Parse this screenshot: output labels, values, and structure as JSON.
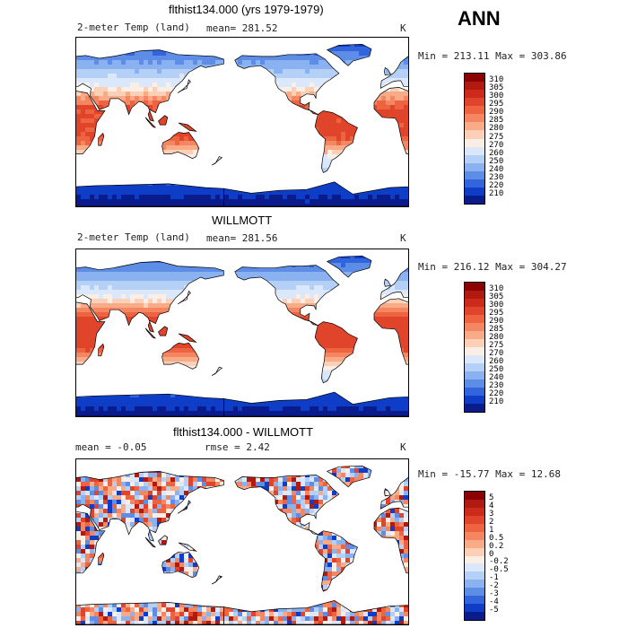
{
  "header": {
    "season": "ANN"
  },
  "panels": [
    {
      "title": "flthist134.000 (yrs 1979-1979)",
      "left_label": "2-meter Temp (land)",
      "mid_label": "mean= 281.52",
      "right_label": "K",
      "min_max": "Min = 213.11 Max = 303.86",
      "levels": [
        "310",
        "305",
        "300",
        "295",
        "290",
        "285",
        "280",
        "275",
        "270",
        "260",
        "250",
        "240",
        "230",
        "220",
        "210"
      ],
      "colors": [
        "#8b0000",
        "#b01a0f",
        "#cc2a1a",
        "#e0452c",
        "#ee6440",
        "#f48762",
        "#f9ab88",
        "#fcd0b6",
        "#fbeee4",
        "#dbe8fb",
        "#b5d0f7",
        "#8ab1f0",
        "#5d8de6",
        "#3265dc",
        "#0e3ec7",
        "#0a1b8c"
      ],
      "theme": "temp1"
    },
    {
      "title": "WILLMOTT",
      "left_label": "2-meter Temp (land)",
      "mid_label": "mean= 281.56",
      "right_label": "K",
      "min_max": "Min = 216.12 Max = 304.27",
      "levels": [
        "310",
        "305",
        "300",
        "295",
        "290",
        "285",
        "280",
        "275",
        "270",
        "260",
        "250",
        "240",
        "230",
        "220",
        "210"
      ],
      "colors": [
        "#8b0000",
        "#b01a0f",
        "#cc2a1a",
        "#e0452c",
        "#ee6440",
        "#f48762",
        "#f9ab88",
        "#fcd0b6",
        "#fbeee4",
        "#dbe8fb",
        "#b5d0f7",
        "#8ab1f0",
        "#5d8de6",
        "#3265dc",
        "#0e3ec7",
        "#0a1b8c"
      ],
      "theme": "temp2"
    },
    {
      "title": "flthist134.000 - WILLMOTT",
      "left_label": "mean =   -0.05",
      "mid_label": "rmse =    2.42",
      "right_label": "K",
      "min_max": "Min = -15.77 Max =   12.68",
      "levels": [
        "5",
        "4",
        "3",
        "2",
        "1",
        "0.5",
        "0.2",
        "0",
        "-0.2",
        "-0.5",
        "-1",
        "-2",
        "-3",
        "-4",
        "-5"
      ],
      "colors": [
        "#8b0000",
        "#b01a0f",
        "#cc2a1a",
        "#e0452c",
        "#ee6440",
        "#f48762",
        "#f9ab88",
        "#fcd0b6",
        "#fbeee4",
        "#dbe8fb",
        "#b5d0f7",
        "#8ab1f0",
        "#5d8de6",
        "#3265dc",
        "#0e3ec7",
        "#0a1b8c"
      ],
      "theme": "diff"
    }
  ]
}
